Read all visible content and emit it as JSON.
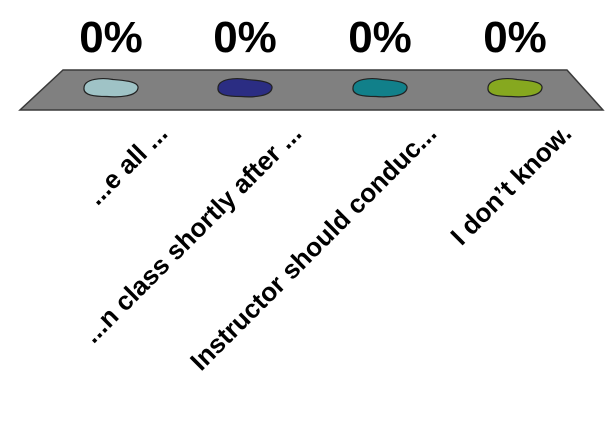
{
  "chart_data": {
    "type": "bar",
    "categories": [
      "...e all ...",
      "...n class shortly after ...",
      "Instructor should conduc...",
      "I don’t know."
    ],
    "values": [
      0,
      0,
      0,
      0
    ],
    "value_labels": [
      "0%",
      "0%",
      "0%",
      "0%"
    ],
    "colors": [
      "#9fc3c6",
      "#2b2d83",
      "#11808a",
      "#86a81f"
    ],
    "title": "",
    "xlabel": "",
    "ylabel": "",
    "ylim": [
      0,
      100
    ],
    "grid": false,
    "legend": "none",
    "floor_color": "#808080"
  }
}
